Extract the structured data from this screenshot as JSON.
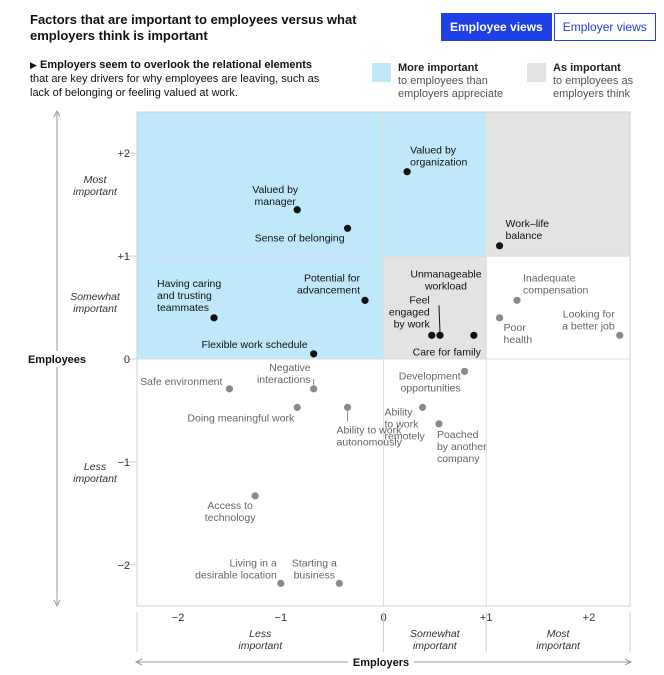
{
  "title": "Factors that are important to employees versus what employers think is important",
  "tabs": [
    {
      "label": "Employee views",
      "active": true
    },
    {
      "label": "Employer views",
      "active": false
    }
  ],
  "note": {
    "bold": "Employers seem to overlook the relational elements",
    "rest": "that are key drivers for why employees are leaving, such as lack of belonging or feeling valued at work."
  },
  "legend": [
    {
      "title": "More important",
      "sub": "to employees than employers appreciate",
      "color": "#bfe9fb"
    },
    {
      "title": "As important",
      "sub": "to employees as employers think",
      "color": "#e3e3e3"
    }
  ],
  "colors": {
    "accent": "#1f40e6",
    "blue_zone": "#bfe9fb",
    "gray_zone": "#e3e3e3",
    "dark_point": "#111111",
    "light_point": "#8a8a8a"
  },
  "chart_data": {
    "type": "scatter",
    "xlabel": "Employers",
    "ylabel": "Employees",
    "xlim": [
      -2.4,
      2.4
    ],
    "ylim": [
      -2.4,
      2.4
    ],
    "x_ticks": [
      "−2",
      "−1",
      "0",
      "+1",
      "+2"
    ],
    "y_ticks": [
      "+2",
      "+1",
      "0",
      "−1",
      "−2"
    ],
    "x_bands": [
      "Less important",
      "Somewhat important",
      "Most important"
    ],
    "y_bands": [
      "Most important",
      "Somewhat important",
      "Less important"
    ],
    "points": [
      {
        "label": "Valued by organization",
        "x": 0.23,
        "y": 1.82,
        "group": "highlight"
      },
      {
        "label": "Valued by manager",
        "x": -0.84,
        "y": 1.45,
        "group": "highlight"
      },
      {
        "label": "Sense of belonging",
        "x": -0.35,
        "y": 1.27,
        "group": "highlight"
      },
      {
        "label": "Work–life balance",
        "x": 1.13,
        "y": 1.1,
        "group": "highlight"
      },
      {
        "label": "Potential for advancement",
        "x": -0.18,
        "y": 0.57,
        "group": "highlight"
      },
      {
        "label": "Having caring and trusting teammates",
        "x": -1.65,
        "y": 0.4,
        "group": "highlight"
      },
      {
        "label": "Flexible work schedule",
        "x": -0.68,
        "y": 0.05,
        "group": "highlight"
      },
      {
        "label": "Unmanageable workload",
        "x": 0.55,
        "y": 0.23,
        "group": "highlight"
      },
      {
        "label": "Feel engaged by work",
        "x": 0.47,
        "y": 0.23,
        "group": "highlight"
      },
      {
        "label": "Care for family",
        "x": 0.88,
        "y": 0.23,
        "group": "highlight"
      },
      {
        "label": "Inadequate compensation",
        "x": 1.3,
        "y": 0.57,
        "group": "muted"
      },
      {
        "label": "Poor health",
        "x": 1.13,
        "y": 0.4,
        "group": "muted"
      },
      {
        "label": "Looking for a better job",
        "x": 2.3,
        "y": 0.23,
        "group": "muted"
      },
      {
        "label": "Development opportunities",
        "x": 0.79,
        "y": -0.12,
        "group": "muted"
      },
      {
        "label": "Ability to work remotely",
        "x": 0.38,
        "y": -0.47,
        "group": "muted"
      },
      {
        "label": "Poached by another company",
        "x": 0.54,
        "y": -0.63,
        "group": "muted"
      },
      {
        "label": "Safe environment",
        "x": -1.5,
        "y": -0.29,
        "group": "muted"
      },
      {
        "label": "Negative interactions",
        "x": -0.68,
        "y": -0.29,
        "group": "muted"
      },
      {
        "label": "Doing meaningful work",
        "x": -0.84,
        "y": -0.47,
        "group": "muted"
      },
      {
        "label": "Ability to work autonomously",
        "x": -0.35,
        "y": -0.47,
        "group": "muted"
      },
      {
        "label": "Access to technology",
        "x": -1.25,
        "y": -1.33,
        "group": "muted"
      },
      {
        "label": "Living in a desirable location",
        "x": -1.0,
        "y": -2.18,
        "group": "muted"
      },
      {
        "label": "Starting a business",
        "x": -0.43,
        "y": -2.18,
        "group": "muted"
      }
    ]
  }
}
